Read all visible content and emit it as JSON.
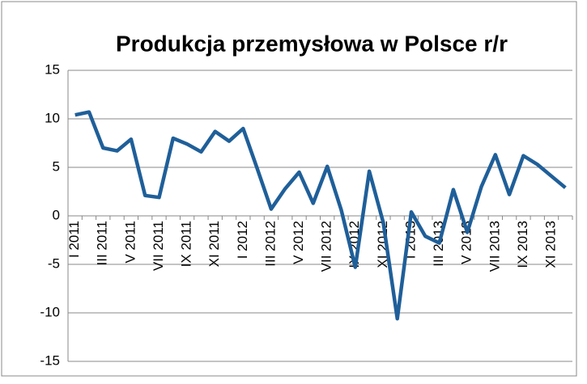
{
  "chart_data": {
    "type": "line",
    "title": "Produkcja przemysłowa w Polsce r/r",
    "categories": [
      "I 2011",
      null,
      "III 2011",
      null,
      "V 2011",
      null,
      "VII 2011",
      null,
      "IX 2011",
      null,
      "XI 2011",
      null,
      "I 2012",
      null,
      "III 2012",
      null,
      "V 2012",
      null,
      "VII 2012",
      null,
      "IX 2012",
      null,
      "XI 2012",
      null,
      "I 2013",
      null,
      "III 2013",
      null,
      "V 2013",
      null,
      "VII 2013",
      null,
      "IX 2013",
      null,
      "XI 2013",
      null
    ],
    "series": [
      {
        "name": "Produkcja przemysłowa",
        "color": "#1f5f99",
        "values": [
          10.4,
          10.7,
          7.0,
          6.7,
          7.9,
          2.1,
          1.9,
          8.0,
          7.4,
          6.6,
          8.7,
          7.7,
          9.0,
          4.9,
          0.7,
          2.8,
          4.5,
          1.3,
          5.1,
          0.6,
          -5.3,
          4.6,
          -0.7,
          -10.6,
          0.4,
          -2.1,
          -2.8,
          2.7,
          -1.7,
          3.0,
          6.3,
          2.2,
          6.2,
          5.3,
          4.1,
          2.9
        ]
      }
    ],
    "ylim": [
      -15,
      15
    ],
    "yticks": [
      -15,
      -10,
      -5,
      0,
      5,
      10,
      15
    ],
    "grid": true
  }
}
